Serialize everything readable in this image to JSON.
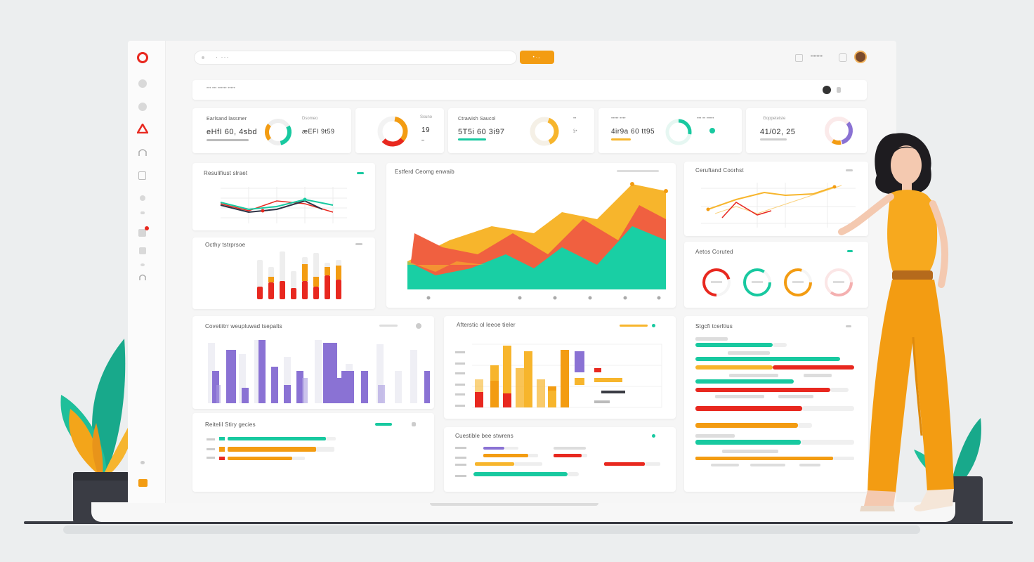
{
  "colors": {
    "orange": "#f39c12",
    "red": "#e8281f",
    "teal": "#18c9a0",
    "purple": "#8a72d4",
    "gray": "#e6e6e6",
    "yellow": "#f7b52c"
  },
  "topbar": {
    "search_placeholder": "· ···",
    "search_button": "• ·→",
    "user_name": "••••••••",
    "menu_icon": "bell-icon"
  },
  "subbar": {
    "breadcrumb": "••• ••• •••••• •••••"
  },
  "kpis": [
    {
      "label": "Earlsand lassmer",
      "value": "eHfI 60, 4sbd",
      "sub": "Dsomeo",
      "sub_value": "æEFI 9t59"
    },
    {
      "label": "Sxuno",
      "value": "19",
      "sub": "••"
    },
    {
      "label": "Ctrawish Saucol",
      "value": "5T5i 60 3i97",
      "sub": "••",
      "sub_value": "§•"
    },
    {
      "label": "••••• ••••",
      "value": "4ir9a 60 tt95",
      "sub": "••• •• •••••"
    },
    {
      "label": "Goppeteiste",
      "value": "41/02, 25"
    }
  ],
  "panels": {
    "line_small": "Resulifiust slraet",
    "bar_small": "Octhy tstrprsoe",
    "area_big": "Estferd Ceomg enwaib",
    "line_right": "Ceruftand Coorhst",
    "donuts": "Aetos Coruted",
    "purple_bars": "Covetiitrr weupluwad tsepalts",
    "mixed_bars": "Afterstic ol leeoe tieler",
    "hbars_right": "Stgcfi tcerltius",
    "small_hbars": "Reitelil Stiry gecies",
    "bottom_center": "Cuestible bee stwrens"
  }
}
